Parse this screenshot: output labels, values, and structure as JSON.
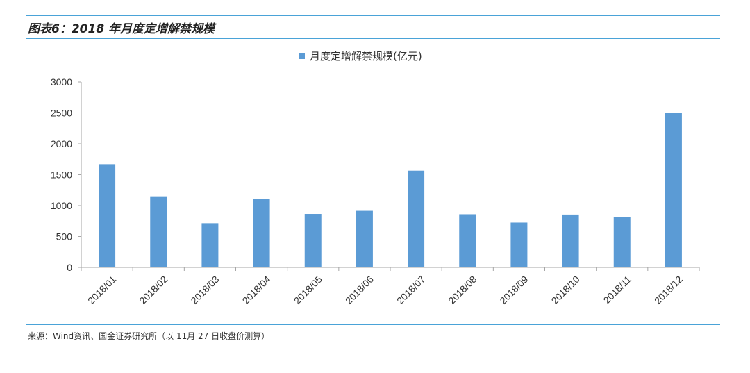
{
  "figure": {
    "title": "图表6：2018 年月度定增解禁规模",
    "source": "来源：Wind资讯、国金证券研究所（以 11月 27 日收盘价测算）"
  },
  "chart_data": {
    "type": "bar",
    "title": "",
    "xlabel": "",
    "ylabel": "",
    "categories": [
      "2018/01",
      "2018/02",
      "2018/03",
      "2018/04",
      "2018/05",
      "2018/06",
      "2018/07",
      "2018/08",
      "2018/09",
      "2018/10",
      "2018/11",
      "2018/12"
    ],
    "series": [
      {
        "name": "月度定增解禁规模(亿元)",
        "color": "#5b9bd5",
        "values": [
          1670,
          1150,
          715,
          1105,
          865,
          915,
          1565,
          860,
          725,
          855,
          815,
          2500
        ]
      }
    ],
    "ylim": [
      0,
      3000
    ],
    "yticks": [
      0,
      500,
      1000,
      1500,
      2000,
      2500,
      3000
    ],
    "grid": false,
    "legend": "top-center"
  }
}
